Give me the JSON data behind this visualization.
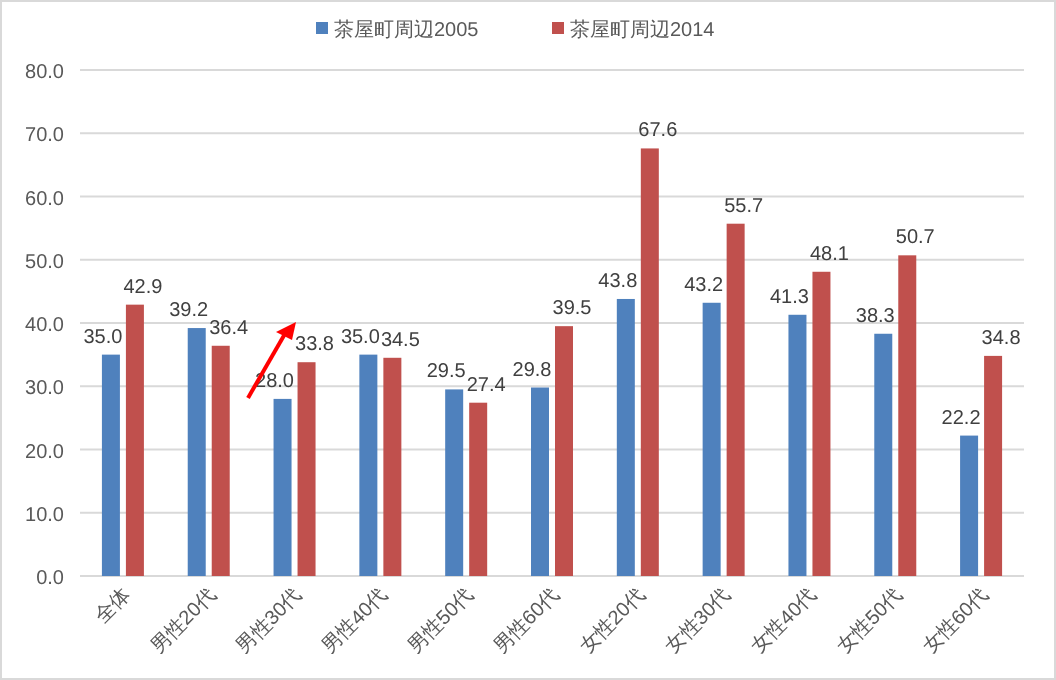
{
  "chart_data": {
    "type": "bar",
    "categories": [
      "全体",
      "男性20代",
      "男性30代",
      "男性40代",
      "男性50代",
      "男性60代",
      "女性20代",
      "女性30代",
      "女性40代",
      "女性50代",
      "女性60代"
    ],
    "series": [
      {
        "name": "茶屋町周辺2005",
        "color": "#4f81bd",
        "values": [
          35.0,
          39.2,
          28.0,
          35.0,
          29.5,
          29.8,
          43.8,
          43.2,
          41.3,
          38.3,
          22.2
        ],
        "value_labels": [
          "35.0",
          "39.2",
          "28.0",
          "35.0",
          "29.5",
          "29.8",
          "43.8",
          "43.2",
          "41.3",
          "38.3",
          "22.2"
        ]
      },
      {
        "name": "茶屋町周辺2014",
        "color": "#c0504d",
        "values": [
          42.9,
          36.4,
          33.8,
          34.5,
          27.4,
          39.5,
          67.6,
          55.7,
          48.1,
          50.7,
          34.8
        ],
        "value_labels": [
          "42.9",
          "36.4",
          "33.8",
          "34.5",
          "27.4",
          "39.5",
          "67.6",
          "55.7",
          "48.1",
          "50.7",
          "34.8"
        ]
      }
    ],
    "ylim": [
      0,
      80
    ],
    "yticks": [
      {
        "value": 0,
        "label": "0.0"
      },
      {
        "value": 10,
        "label": "10.0"
      },
      {
        "value": 20,
        "label": "20.0"
      },
      {
        "value": 30,
        "label": "30.0"
      },
      {
        "value": 40,
        "label": "40.0"
      },
      {
        "value": 50,
        "label": "50.0"
      },
      {
        "value": 60,
        "label": "60.0"
      },
      {
        "value": 70,
        "label": "70.0"
      },
      {
        "value": 80,
        "label": "80.0"
      }
    ],
    "grid": "y",
    "legend": "top"
  }
}
